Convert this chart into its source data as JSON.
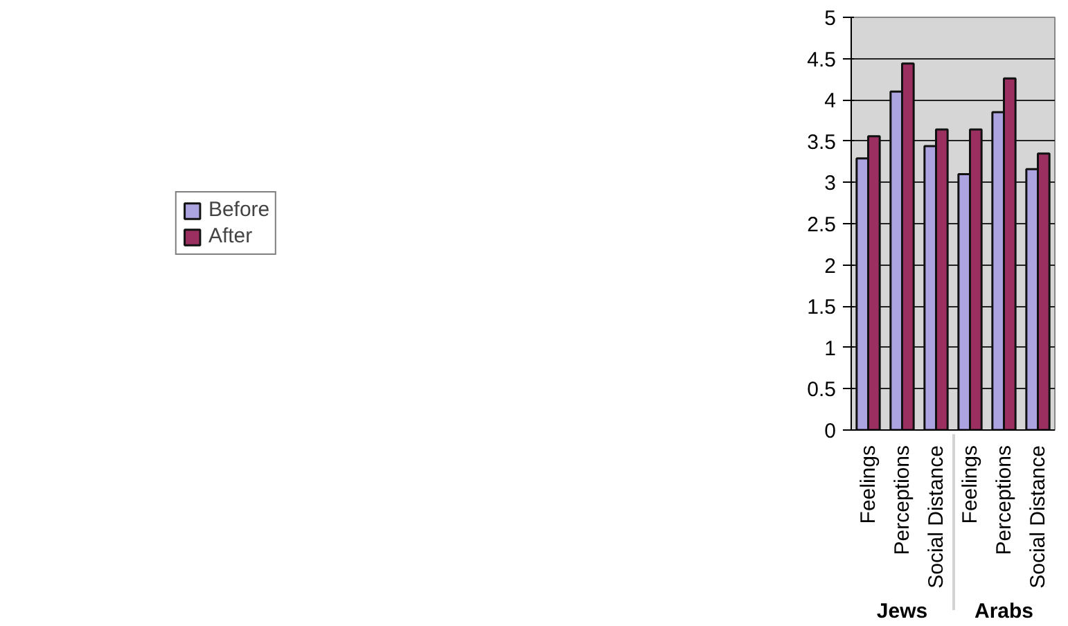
{
  "chart_data": {
    "type": "bar",
    "categories": [
      "Feelings",
      "Perceptions",
      "Social Distance",
      "Feelings",
      "Perceptions",
      "Social Distance"
    ],
    "annotations": [
      "Jews",
      "Arabs"
    ],
    "series": [
      {
        "name": "Before",
        "color": "#aca4e0",
        "values": [
          3.29,
          4.1,
          3.44,
          3.1,
          3.85,
          3.16
        ]
      },
      {
        "name": "After",
        "color": "#9b3060",
        "values": [
          3.56,
          4.44,
          3.64,
          3.64,
          4.26,
          3.35
        ]
      }
    ],
    "ylim": [
      0,
      5
    ],
    "yticks": [
      0,
      0.5,
      1,
      1.5,
      2,
      2.5,
      3,
      3.5,
      4,
      4.5,
      5
    ],
    "grid": "y",
    "legend": "left"
  }
}
